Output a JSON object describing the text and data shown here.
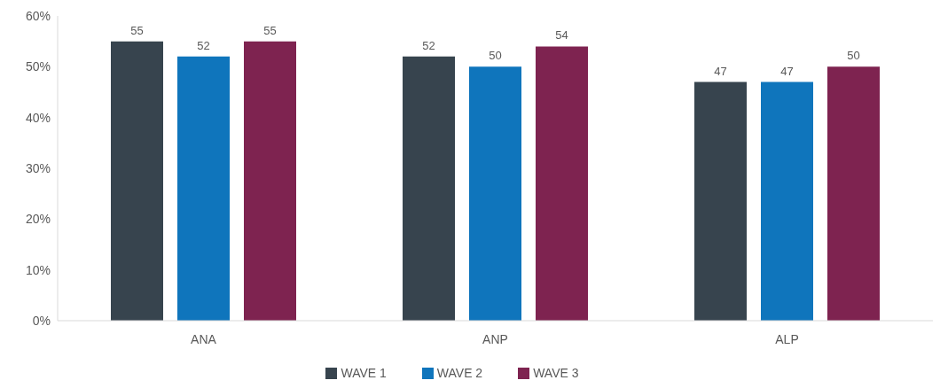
{
  "chart_data": {
    "type": "bar",
    "categories": [
      "ANA",
      "ANP",
      "ALP"
    ],
    "series": [
      {
        "name": "WAVE 1",
        "color": "#37444e",
        "values": [
          55,
          52,
          47
        ]
      },
      {
        "name": "WAVE 2",
        "color": "#0f75bc",
        "values": [
          52,
          50,
          47
        ]
      },
      {
        "name": "WAVE 3",
        "color": "#7e2350",
        "values": [
          55,
          54,
          50
        ]
      }
    ],
    "ylim": [
      0,
      60
    ],
    "yticks": [
      {
        "value": 0,
        "label": "0%"
      },
      {
        "value": 10,
        "label": "10%"
      },
      {
        "value": 20,
        "label": "20%"
      },
      {
        "value": 30,
        "label": "30%"
      },
      {
        "value": 40,
        "label": "40%"
      },
      {
        "value": 50,
        "label": "50%"
      },
      {
        "value": 60,
        "label": "60%"
      }
    ],
    "data_labels": true,
    "legend": "bottom"
  }
}
